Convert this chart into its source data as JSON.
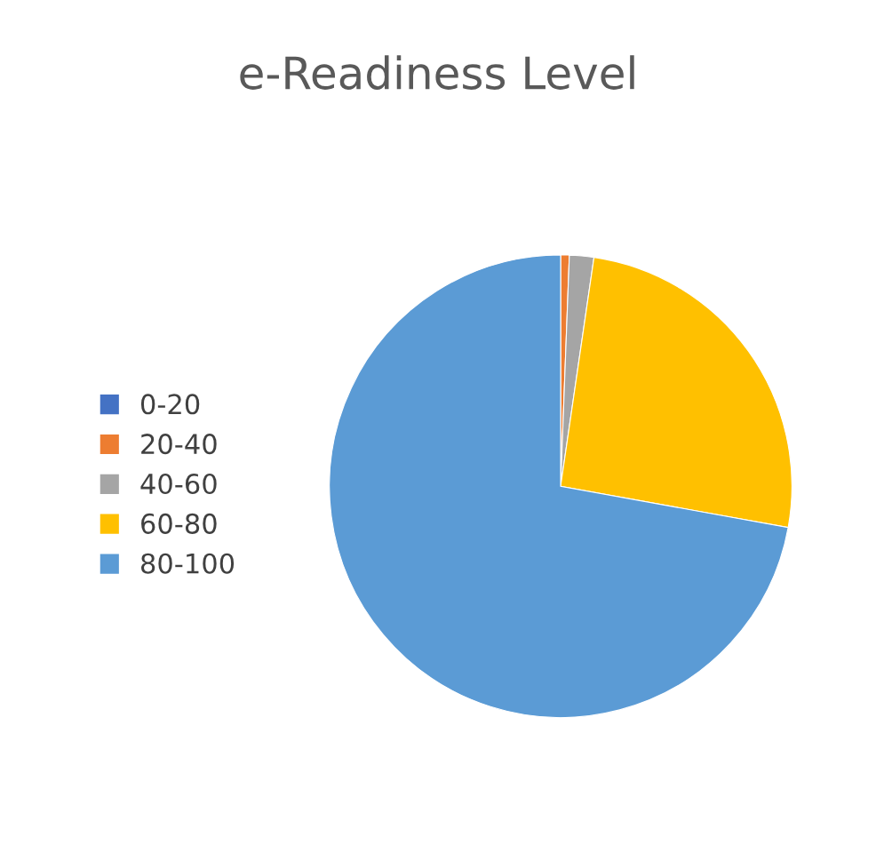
{
  "chart_data": {
    "type": "pie",
    "title": "e-Readiness Level",
    "categories": [
      "0-20",
      "20-40",
      "40-60",
      "60-80",
      "80-100"
    ],
    "values": [
      null,
      0.6,
      1.7,
      25.5,
      72.0
    ],
    "colors": [
      "#4472c4",
      "#ed7d31",
      "#a5a5a5",
      "#ffc000",
      "#5b9bd5"
    ],
    "legend": "left"
  }
}
